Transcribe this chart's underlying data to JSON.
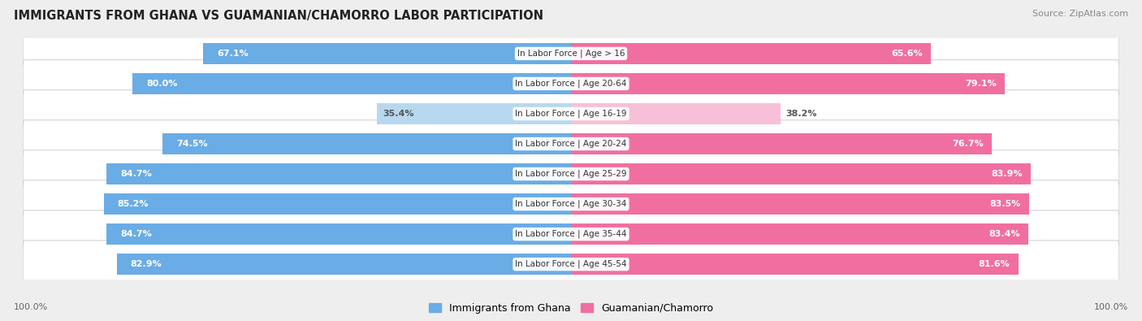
{
  "title": "IMMIGRANTS FROM GHANA VS GUAMANIAN/CHAMORRO LABOR PARTICIPATION",
  "source": "Source: ZipAtlas.com",
  "categories": [
    "In Labor Force | Age > 16",
    "In Labor Force | Age 20-64",
    "In Labor Force | Age 16-19",
    "In Labor Force | Age 20-24",
    "In Labor Force | Age 25-29",
    "In Labor Force | Age 30-34",
    "In Labor Force | Age 35-44",
    "In Labor Force | Age 45-54"
  ],
  "ghana_values": [
    67.1,
    80.0,
    35.4,
    74.5,
    84.7,
    85.2,
    84.7,
    82.9
  ],
  "chamorro_values": [
    65.6,
    79.1,
    38.2,
    76.7,
    83.9,
    83.5,
    83.4,
    81.6
  ],
  "ghana_color": "#6aace6",
  "chamorro_color": "#f06fa0",
  "ghana_color_light": "#b8d8f0",
  "chamorro_color_light": "#f8c0d8",
  "bar_height": 0.72,
  "bg_color": "#eeeeee",
  "legend_ghana": "Immigrants from Ghana",
  "legend_chamorro": "Guamanian/Chamorro",
  "axis_label_left": "100.0%",
  "axis_label_right": "100.0%",
  "low_value_threshold": 50
}
